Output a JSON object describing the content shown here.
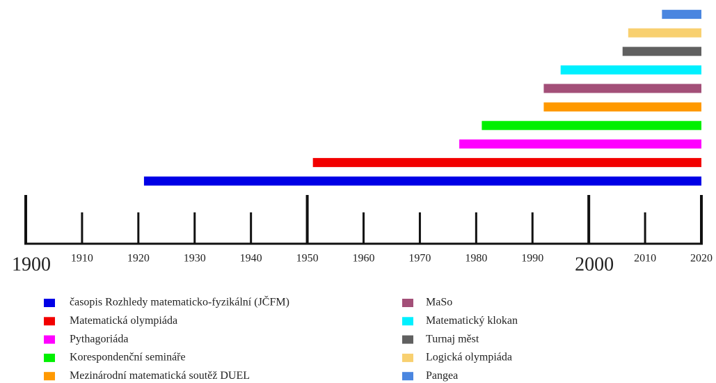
{
  "chart_data": {
    "type": "timeline",
    "series": [
      {
        "name": "časopis Rozhledy matematicko-fyzikální (JČFM)",
        "color": "#0000e6",
        "start": 1921,
        "end": 2020
      },
      {
        "name": "Matematická olympiáda",
        "color": "#f20000",
        "start": 1951,
        "end": 2020
      },
      {
        "name": "Pythagoriáda",
        "color": "#ff00ff",
        "start": 1977,
        "end": 2020
      },
      {
        "name": "Korespondenční semináře",
        "color": "#00f000",
        "start": 1981,
        "end": 2020
      },
      {
        "name": "Mezinárodní matematická soutěž DUEL",
        "color": "#ff9900",
        "start": 1992,
        "end": 2020
      },
      {
        "name": "MaSo",
        "color": "#a34f78",
        "start": 1992,
        "end": 2020
      },
      {
        "name": "Matematický klokan",
        "color": "#00f0ff",
        "start": 1995,
        "end": 2020
      },
      {
        "name": "Turnaj měst",
        "color": "#606060",
        "start": 2006,
        "end": 2020
      },
      {
        "name": "Logická olympiáda",
        "color": "#f8d070",
        "start": 2007,
        "end": 2020
      },
      {
        "name": "Pangea",
        "color": "#4a86e0",
        "start": 2013,
        "end": 2020
      }
    ],
    "xlim": [
      1900,
      2020
    ],
    "xticks": [
      1900,
      1910,
      1920,
      1930,
      1940,
      1950,
      1960,
      1970,
      1980,
      1990,
      2000,
      2010,
      2020
    ],
    "major_ticks": [
      1900,
      1950,
      2000,
      2020
    ],
    "large_labels": [
      1900,
      2000
    ]
  }
}
